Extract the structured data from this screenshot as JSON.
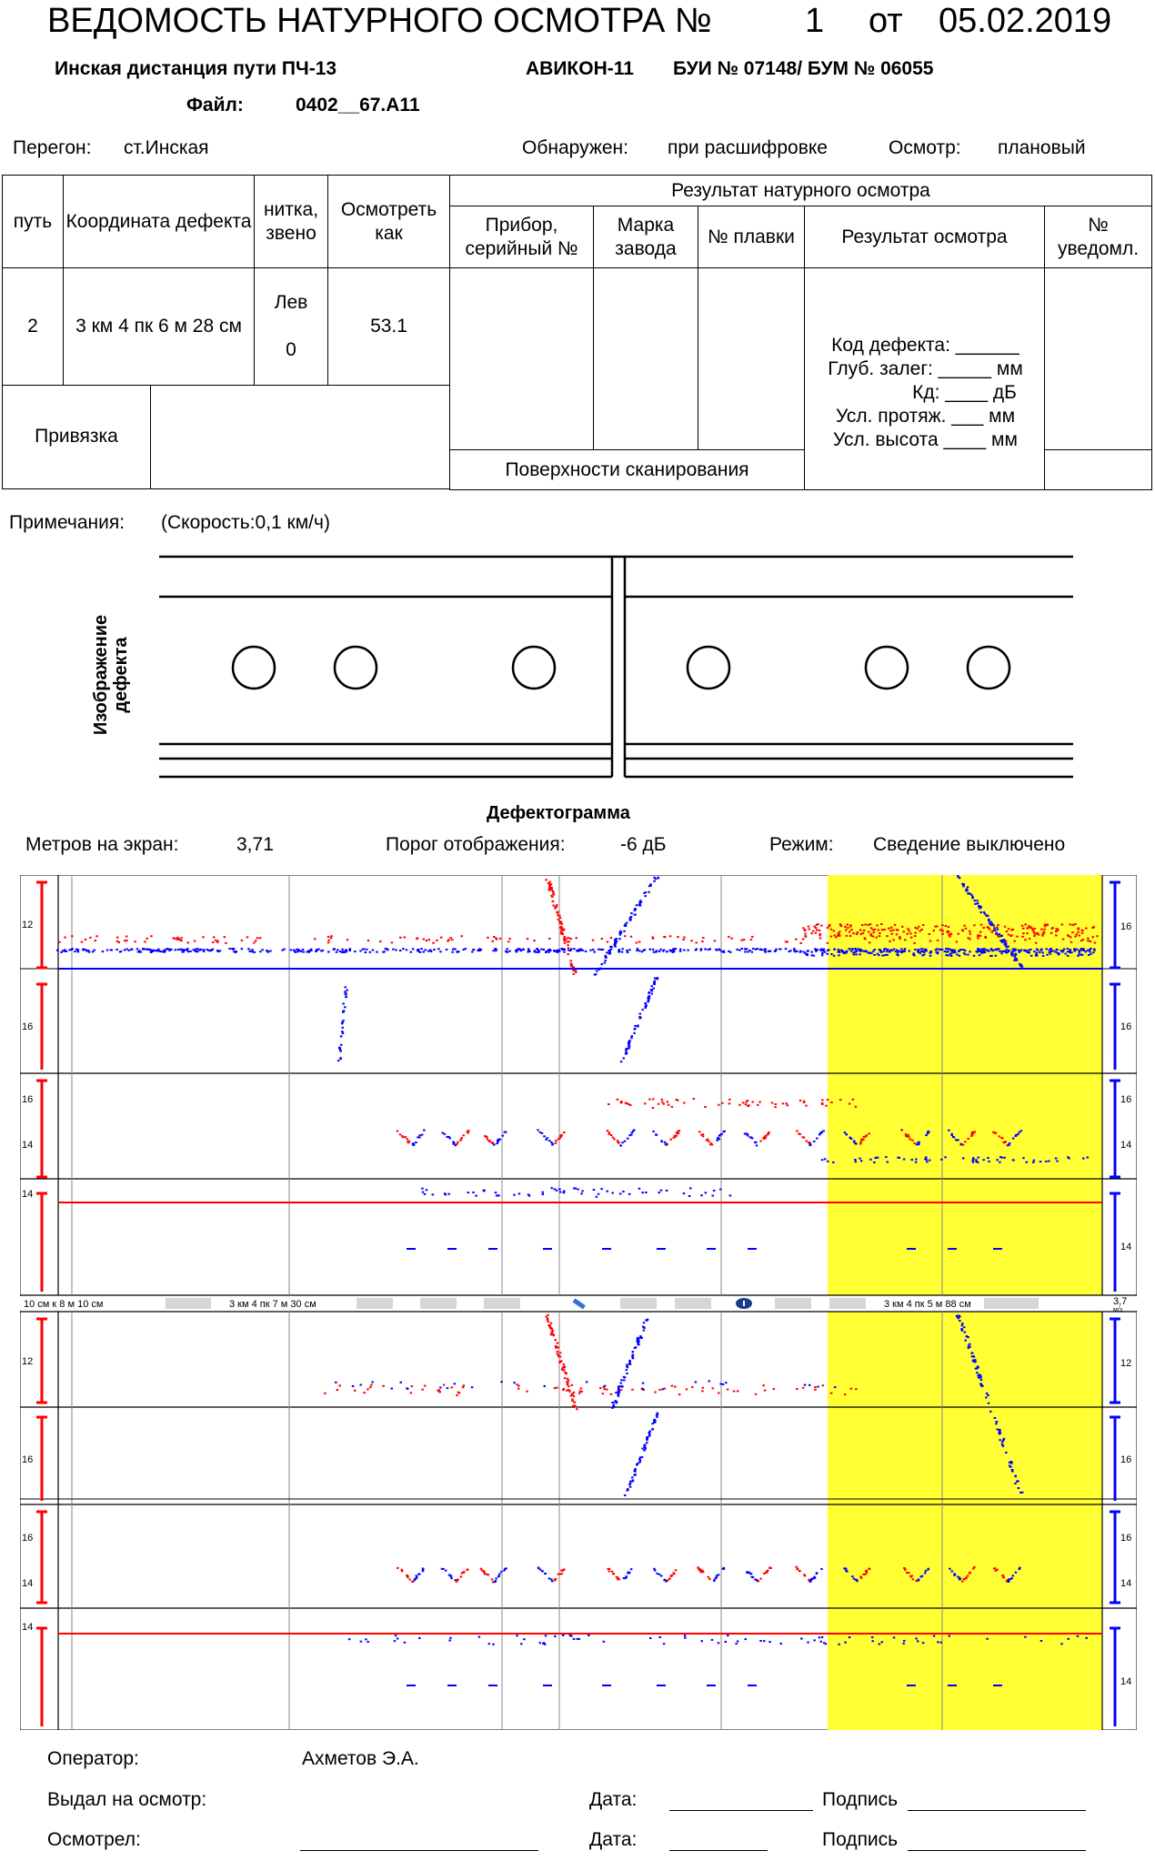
{
  "header": {
    "title": "ВЕДОМОСТЬ НАТУРНОГО ОСМОТРА №",
    "number": "1",
    "ot": "от",
    "date": "05.02.2019",
    "distance": "Инская дистанция пути ПЧ-13",
    "device": "АВИКОН-11",
    "bui": "БУИ № 07148/ БУМ № 06055",
    "file_label": "Файл:",
    "file_name": "0402__67.A11"
  },
  "info": {
    "peregon_label": "Перегон:",
    "peregon_value": "ст.Инская",
    "found_label": "Обнаружен:",
    "found_value": "при расшифровке",
    "inspect_label": "Осмотр:",
    "inspect_value": "плановый"
  },
  "table": {
    "col_put": "путь",
    "col_coord": "Координата дефекта",
    "col_nitka": "нитка, звено",
    "col_osm": "Осмотреть как",
    "result_header": "Результат натурного осмотра",
    "col_device": "Прибор, серийный №",
    "col_brand": "Марка завода",
    "col_plavka": "№ плавки",
    "col_result": "Результат осмотра",
    "col_notice": "№ уведомл.",
    "put_value": "2",
    "coord_value": "3 км 4 пк 6 м 28 см",
    "nitka_value": "Лев",
    "zveno_value": "0",
    "osm_value": "53.1",
    "result_lines": [
      "Код дефекта: ______",
      "Глуб. залег: _____ мм",
      "Кд: ____ дБ",
      "Усл. протяж. ___ мм",
      "Усл. высота ____ мм"
    ],
    "privyazka": "Привязка",
    "surfaces": "Поверхности сканирования"
  },
  "notes": {
    "label": "Примечания:",
    "value": "(Скорость:0,1 км/ч)"
  },
  "defect_image_label": "Изображение дефекта",
  "defectogram": {
    "title": "Дефектограмма",
    "meters_label": "Метров на экран:",
    "meters_value": "3,71",
    "threshold_label": "Порог отображения:",
    "threshold_value": "-6 дБ",
    "mode_label": "Режим:",
    "mode_value": "Сведение выключено",
    "ruler_left": "10 см к 8 м 10 см",
    "ruler_mid": "3 км 4 пк 7 м 30 см",
    "ruler_right": "3 км 4 пк 5 м 88 см",
    "ruler_end": "3,7",
    "ruler_unit": "м/з",
    "upper_left_labels": [
      "12",
      "16",
      "16",
      "14",
      "14"
    ],
    "upper_right_labels": [
      "16",
      "16",
      "16",
      "14",
      "14"
    ],
    "lower_left_labels": [
      "12",
      "16",
      "16",
      "14",
      "14"
    ],
    "lower_right_labels": [
      "12",
      "16",
      "16",
      "14",
      "14"
    ],
    "red_color": "#ff0000",
    "blue_color": "#0000ff",
    "highlight_color": "#ffff33"
  },
  "footer": {
    "operator_label": "Оператор:",
    "operator_value": "Ахметов Э.А.",
    "issued_label": "Выдал на осмотр:",
    "inspected_label": "Осмотрел:",
    "date_label": "Дата:",
    "sign_label": "Подпись"
  }
}
